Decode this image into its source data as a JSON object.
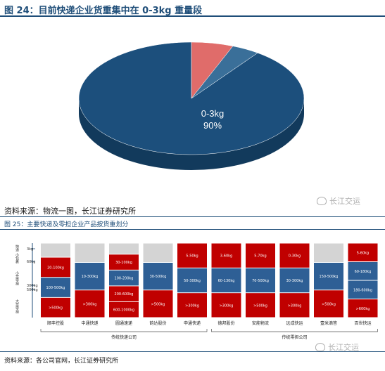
{
  "figure1": {
    "title": "图 24：目前快递企业货重集中在 0-3kg 重量段",
    "source": "资料来源：物流一图，长江证券研究所"
  },
  "figure2": {
    "title": "图 25：主要快递及零担企业产品按货重划分",
    "source": "资料来源：各公司官网，长江证券研究所"
  },
  "watermark": "长江交运",
  "colors": {
    "navy": "#1f4e79",
    "pie_main": "#1c4f7c",
    "pie_salmon": "#e06c6a",
    "pie_steel": "#3a6f99",
    "red": "#c00000",
    "blue": "#2e5f95",
    "gray": "#d4d4d4"
  },
  "chart_data": [
    {
      "type": "pie",
      "title": "",
      "slices": [
        {
          "label": "0-3kg",
          "value": 90,
          "value_label": "90%"
        },
        {
          "label": "",
          "value": 6
        },
        {
          "label": "",
          "value": 4
        }
      ]
    },
    {
      "type": "table",
      "axis_labels": [
        "快递",
        "小包裹",
        "小票零担",
        "大票零担"
      ],
      "axis_ticks": [
        "3kg",
        "60kg",
        "300kg",
        "500kg"
      ],
      "groups": [
        {
          "label": "传统快递公司",
          "companies": [
            0,
            1,
            2,
            3,
            4
          ]
        },
        {
          "label": "传统零担公司",
          "companies": [
            5,
            6,
            7,
            8,
            9
          ]
        }
      ],
      "companies": [
        {
          "name": "顺丰控股",
          "segments": [
            {
              "kind": "gray",
              "text": ""
            },
            {
              "kind": "red",
              "text": "20-100kg"
            },
            {
              "kind": "blue",
              "text": "100-500kg"
            },
            {
              "kind": "red",
              "text": ">500kg"
            }
          ]
        },
        {
          "name": "中通快递",
          "segments": [
            {
              "kind": "gray",
              "text": ""
            },
            {
              "kind": "blue",
              "text": "10-300kg"
            },
            {
              "kind": "red",
              "text": ">300kg"
            }
          ]
        },
        {
          "name": "圆通速递",
          "segments": [
            {
              "kind": "gray",
              "text": ""
            },
            {
              "kind": "red",
              "text": "30-100kg"
            },
            {
              "kind": "blue",
              "text": "100-200kg"
            },
            {
              "kind": "red",
              "text": "200-600kg"
            },
            {
              "kind": "red",
              "text": "600-1000kg"
            }
          ]
        },
        {
          "name": "韵达股份",
          "segments": [
            {
              "kind": "gray",
              "text": ""
            },
            {
              "kind": "blue",
              "text": "30-500kg"
            },
            {
              "kind": "red",
              "text": ">500kg"
            }
          ]
        },
        {
          "name": "申通快递",
          "segments": [
            {
              "kind": "red",
              "text": "5-50kg"
            },
            {
              "kind": "blue",
              "text": "50-300kg"
            },
            {
              "kind": "red",
              "text": ">300kg"
            }
          ]
        },
        {
          "name": "德邦股份",
          "segments": [
            {
              "kind": "red",
              "text": "3-60kg"
            },
            {
              "kind": "blue",
              "text": "60-130kg"
            },
            {
              "kind": "red",
              "text": ">300kg"
            }
          ]
        },
        {
          "name": "安能物流",
          "segments": [
            {
              "kind": "red",
              "text": "5-70kg"
            },
            {
              "kind": "blue",
              "text": "70-500kg"
            },
            {
              "kind": "red",
              "text": ">500kg"
            }
          ]
        },
        {
          "name": "远成快运",
          "segments": [
            {
              "kind": "red",
              "text": "0-30kg"
            },
            {
              "kind": "blue",
              "text": "30-300kg"
            },
            {
              "kind": "red",
              "text": ">300kg"
            }
          ]
        },
        {
          "name": "壹米滴答",
          "segments": [
            {
              "kind": "gray",
              "text": ""
            },
            {
              "kind": "blue",
              "text": "150-500kg"
            },
            {
              "kind": "red",
              "text": ">500kg"
            }
          ]
        },
        {
          "name": "百世快运",
          "segments": [
            {
              "kind": "red",
              "text": "5-60kg"
            },
            {
              "kind": "blue",
              "text": "60-180kg"
            },
            {
              "kind": "blue",
              "text": "180-600kg"
            },
            {
              "kind": "red",
              "text": ">600kg"
            }
          ]
        }
      ]
    }
  ]
}
